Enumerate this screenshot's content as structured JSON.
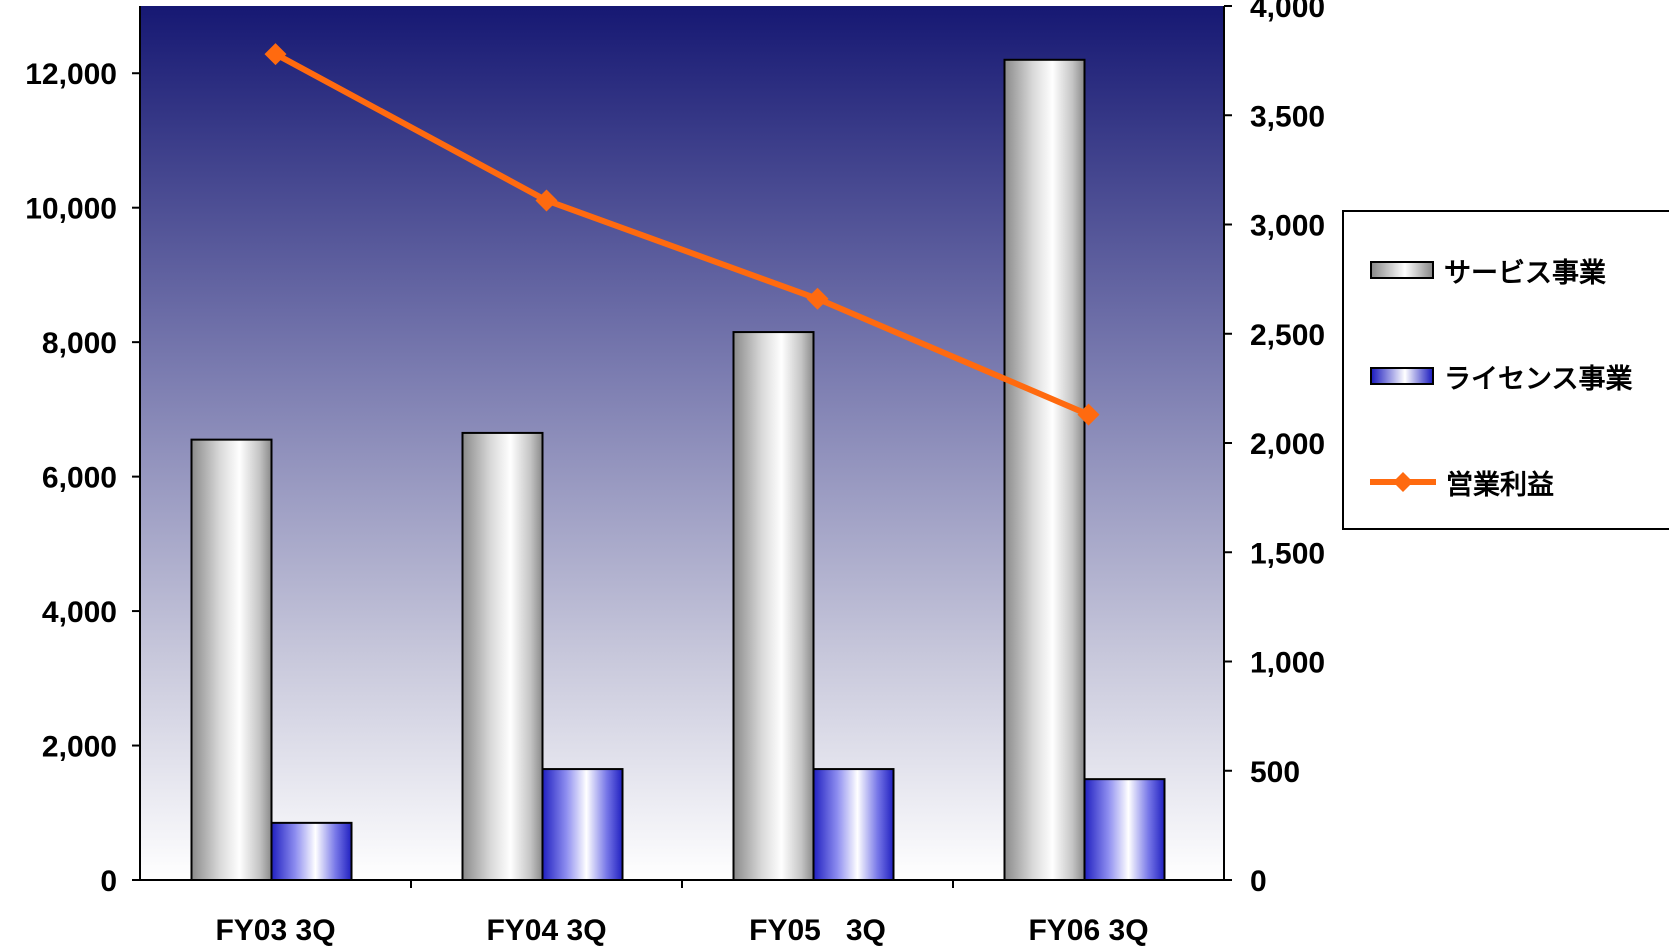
{
  "chart_data": {
    "type": "bar",
    "categories": [
      "FY03 3Q",
      "FY04 3Q",
      "FY05   3Q",
      "FY06 3Q"
    ],
    "series": [
      {
        "name": "サービス事業",
        "type": "bar",
        "axis": "left",
        "values": [
          6550,
          6650,
          8150,
          12200
        ],
        "color": "#b8b8b8"
      },
      {
        "name": "ライセンス事業",
        "type": "bar",
        "axis": "left",
        "values": [
          850,
          1650,
          1650,
          1500
        ],
        "color": "#3f3fd0"
      },
      {
        "name": "営業利益",
        "type": "line",
        "axis": "right",
        "values": [
          3780,
          3110,
          2660,
          2130
        ],
        "color": "#ff6a0f"
      }
    ],
    "y_left": {
      "ylim": [
        0,
        13000
      ],
      "ticks": [
        0,
        2000,
        4000,
        6000,
        8000,
        10000,
        12000
      ],
      "tick_labels": [
        "0",
        "2,000",
        "4,000",
        "6,000",
        "8,000",
        "10,000",
        "12,000"
      ]
    },
    "y_right": {
      "ylim": [
        0,
        4000
      ],
      "ticks": [
        0,
        500,
        1000,
        1500,
        2000,
        2500,
        3000,
        3500,
        4000
      ],
      "tick_labels": [
        "0",
        "500",
        "1,000",
        "1,500",
        "2,000",
        "2,500",
        "3,000",
        "3,500",
        "4,000"
      ]
    },
    "background_gradient": [
      "#161873",
      "#ffffff"
    ],
    "legend_position": "right",
    "grid": false,
    "title": "",
    "xlabel": "",
    "ylabel": ""
  },
  "legend": {
    "items": [
      {
        "label": "サービス事業",
        "kind": "bar-gray"
      },
      {
        "label": "ライセンス事業",
        "kind": "bar-blue"
      },
      {
        "label": "営業利益",
        "kind": "line-orange"
      }
    ]
  }
}
